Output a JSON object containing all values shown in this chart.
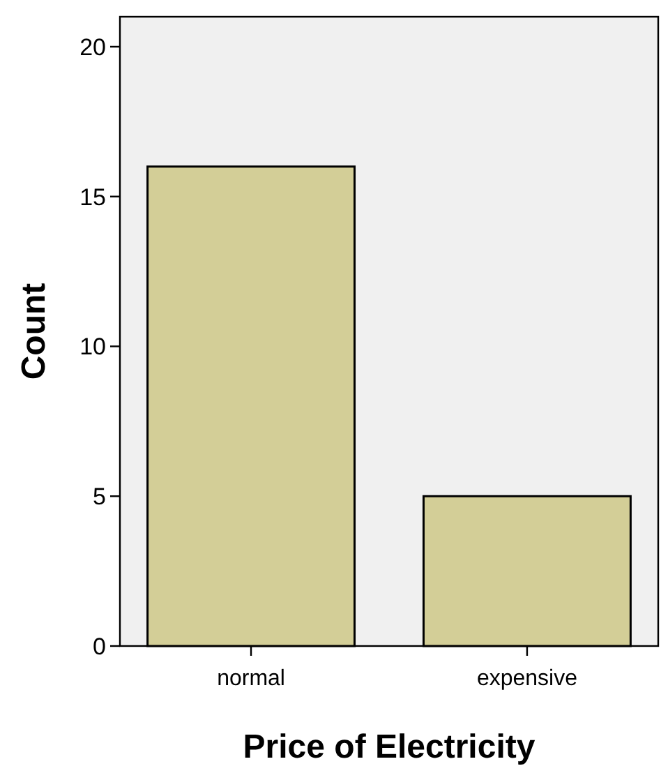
{
  "chart_data": {
    "type": "bar",
    "xlabel": "Price of Electricity",
    "ylabel": "Count",
    "categories": [
      "normal",
      "expensive"
    ],
    "values": [
      16,
      5
    ],
    "color": "#d3ce97",
    "ylim": [
      0,
      21
    ],
    "yticks": [
      0,
      5,
      10,
      15,
      20
    ],
    "grid": false
  }
}
